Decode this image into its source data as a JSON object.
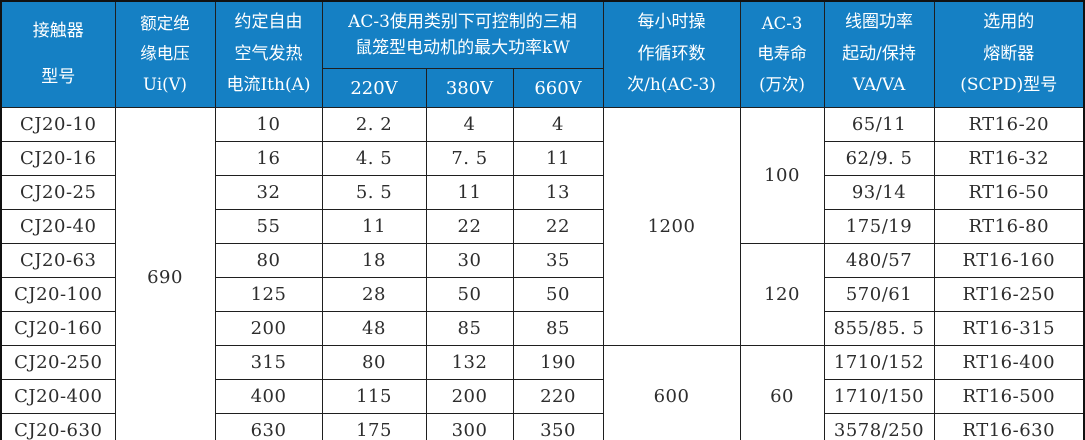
{
  "colors": {
    "header_bg": "#1580c4",
    "header_text": "#ffffff",
    "body_text": "#2d2d2d",
    "border": "#1f1f1f"
  },
  "table": {
    "headers": {
      "model": "接触器\n型号",
      "insulation_voltage": "额定绝\n缘电压\nUi(V)",
      "thermal_current": "约定自由\n空气发热\n电流Ith(A)",
      "ac3_power": "AC-3使用类别下可控制的三相\n鼠笼型电动机的最大功率kW",
      "v220": "220V",
      "v380": "380V",
      "v660": "660V",
      "cycles_per_hour": "每小时操\n作循环数\n次/h(AC-3)",
      "electrical_life": "AC-3\n电寿命\n(万次)",
      "coil_power": "线圈功率\n起动/保持\nVA/VA",
      "fuse": "选用的\n熔断器\n(SCPD)型号"
    },
    "rows": [
      [
        "CJ20-10",
        {
          "t": "690",
          "rs": 10
        },
        "10",
        "2. 2",
        "4",
        "4",
        {
          "t": "1200",
          "rs": 7
        },
        {
          "t": "100",
          "rs": 4
        },
        "65/11",
        "RT16-20"
      ],
      [
        "CJ20-16",
        "16",
        "4. 5",
        "7. 5",
        "11",
        "62/9. 5",
        "RT16-32"
      ],
      [
        "CJ20-25",
        "32",
        "5. 5",
        "11",
        "13",
        "93/14",
        "RT16-50"
      ],
      [
        "CJ20-40",
        "55",
        "11",
        "22",
        "22",
        "175/19",
        "RT16-80"
      ],
      [
        "CJ20-63",
        "80",
        "18",
        "30",
        "35",
        {
          "t": "120",
          "rs": 3
        },
        "480/57",
        "RT16-160"
      ],
      [
        "CJ20-100",
        "125",
        "28",
        "50",
        "50",
        "570/61",
        "RT16-250"
      ],
      [
        "CJ20-160",
        "200",
        "48",
        "85",
        "85",
        "855/85. 5",
        "RT16-315"
      ],
      [
        "CJ20-250",
        "315",
        "80",
        "132",
        "190",
        {
          "t": "600",
          "rs": 3
        },
        {
          "t": "60",
          "rs": 3
        },
        "1710/152",
        "RT16-400"
      ],
      [
        "CJ20-400",
        "400",
        "115",
        "200",
        "220",
        "1710/150",
        "RT16-500"
      ],
      [
        "CJ20-630",
        "630",
        "175",
        "300",
        "350",
        "3578/250",
        "RT16-630"
      ]
    ]
  }
}
